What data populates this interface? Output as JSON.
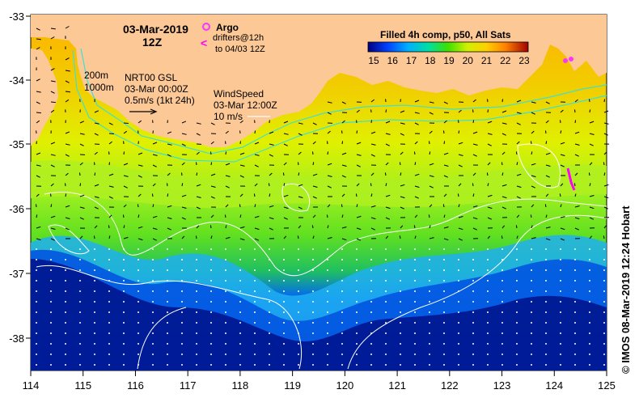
{
  "header": {
    "date": "03-Mar-2019",
    "time": "12Z"
  },
  "legend": {
    "argo_label": "Argo",
    "drifters_label": "drifters@12h",
    "drifters_to": "to 04/03 12Z",
    "argo_color": "#ff33ff",
    "drifter_color": "#ff00ff"
  },
  "depth_contours": {
    "shallow": "200m",
    "deep": "1000m"
  },
  "current_scale": {
    "line1": "NRT00 GSL",
    "line2": "03-Mar 00:00Z",
    "line3": "0.5m/s (1kt 24h)"
  },
  "wind_scale": {
    "line1": "WindSpeed",
    "line2": "03-Mar 12:00Z",
    "line3": "10 m/s"
  },
  "colorbar": {
    "title": "Filled 4h comp, p50, All Sats",
    "ticks": [
      "15",
      "16",
      "17",
      "18",
      "19",
      "20",
      "21",
      "22",
      "23"
    ],
    "colors": [
      "#0000a0",
      "#0040ff",
      "#00c0ff",
      "#00e080",
      "#60e000",
      "#d0f000",
      "#ffd000",
      "#ff8000",
      "#d03000",
      "#800000"
    ]
  },
  "axes": {
    "x_ticks": [
      "114",
      "115",
      "116",
      "117",
      "118",
      "119",
      "120",
      "121",
      "122",
      "123",
      "124",
      "125"
    ],
    "y_ticks": [
      "-33",
      "-34",
      "-35",
      "-36",
      "-37",
      "-38"
    ]
  },
  "credit": "© IMOS 08-Mar-2019 12:24 Hobart",
  "colors": {
    "land": "#fcc896",
    "ocean_deep": "#00007a",
    "contour": "#ffffff",
    "shelf_line": "#40e0d0"
  }
}
